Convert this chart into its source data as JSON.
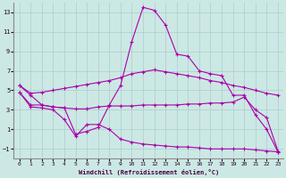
{
  "xlabel": "Windchill (Refroidissement éolien,°C)",
  "bg_color": "#cce8e4",
  "line_color": "#aa00aa",
  "grid_color": "#aacccc",
  "xlim": [
    -0.5,
    23.5
  ],
  "ylim": [
    -2,
    14
  ],
  "yticks": [
    -1,
    1,
    3,
    5,
    7,
    9,
    11,
    13
  ],
  "xticks": [
    0,
    1,
    2,
    3,
    4,
    5,
    6,
    7,
    8,
    9,
    10,
    11,
    12,
    13,
    14,
    15,
    16,
    17,
    18,
    19,
    20,
    21,
    22,
    23
  ],
  "line1_x": [
    0,
    1,
    2,
    3,
    4,
    5,
    6,
    7,
    8,
    9,
    10,
    11,
    12,
    13,
    14,
    15,
    16,
    17,
    18,
    19,
    20,
    21,
    22,
    23
  ],
  "line1_y": [
    5.5,
    4.7,
    4.8,
    5.0,
    5.2,
    5.4,
    5.6,
    5.8,
    6.0,
    6.3,
    6.7,
    6.9,
    7.1,
    6.9,
    6.7,
    6.5,
    6.3,
    6.0,
    5.8,
    5.5,
    5.3,
    5.0,
    4.7,
    4.5
  ],
  "line2_x": [
    0,
    1,
    2,
    3,
    4,
    5,
    6,
    7,
    8,
    9,
    10,
    11,
    12,
    13,
    14,
    15,
    16,
    17,
    18,
    19,
    20,
    21,
    22,
    23
  ],
  "line2_y": [
    5.5,
    4.5,
    3.5,
    3.3,
    3.2,
    0.5,
    0.8,
    1.2,
    3.5,
    5.5,
    10.0,
    13.5,
    13.2,
    11.7,
    8.7,
    8.5,
    7.0,
    6.7,
    6.5,
    4.5,
    4.5,
    2.5,
    1.0,
    -1.3
  ],
  "line3_x": [
    0,
    1,
    2,
    3,
    4,
    5,
    6,
    7,
    8,
    9,
    10,
    11,
    12,
    13,
    14,
    15,
    16,
    17,
    18,
    19,
    20,
    21,
    22,
    23
  ],
  "line3_y": [
    4.8,
    3.5,
    3.5,
    3.3,
    3.2,
    3.1,
    3.1,
    3.3,
    3.4,
    3.4,
    3.4,
    3.5,
    3.5,
    3.5,
    3.5,
    3.6,
    3.6,
    3.7,
    3.7,
    3.8,
    4.3,
    3.0,
    2.2,
    -1.2
  ],
  "line4_x": [
    0,
    1,
    2,
    3,
    4,
    5,
    6,
    7,
    8,
    9,
    10,
    11,
    12,
    13,
    14,
    15,
    16,
    17,
    18,
    19,
    20,
    21,
    22,
    23
  ],
  "line4_y": [
    4.8,
    3.3,
    3.2,
    3.0,
    2.0,
    0.3,
    1.5,
    1.5,
    1.0,
    0.0,
    -0.3,
    -0.5,
    -0.6,
    -0.7,
    -0.8,
    -0.8,
    -0.9,
    -1.0,
    -1.0,
    -1.0,
    -1.0,
    -1.1,
    -1.2,
    -1.3
  ]
}
